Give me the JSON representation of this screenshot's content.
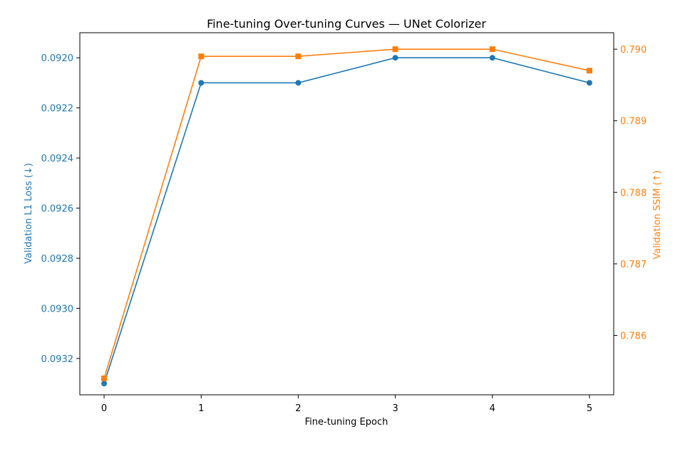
{
  "chart_data": {
    "type": "line",
    "title": "Fine-tuning Over-tuning Curves — UNet Colorizer",
    "xlabel": "Fine-tuning Epoch",
    "x": [
      0,
      1,
      2,
      3,
      4,
      5
    ],
    "xticks": [
      "0",
      "1",
      "2",
      "3",
      "4",
      "5"
    ],
    "xlim": [
      -0.25,
      5.25
    ],
    "grid": false,
    "series": [
      {
        "axis": "left",
        "color": "#1f77b4",
        "marker": "circle",
        "values": [
          0.0933,
          0.0921,
          0.0921,
          0.092,
          0.092,
          0.0921
        ]
      },
      {
        "axis": "right",
        "color": "#ff7f0e",
        "marker": "square",
        "values": [
          0.7854,
          0.7899,
          0.7899,
          0.79,
          0.79,
          0.7897
        ]
      }
    ],
    "y_left": {
      "label": "Validation L1 Loss (↓)",
      "inverted": true,
      "lim": [
        0.0919,
        0.093345
      ],
      "ticks": [
        "0.0920",
        "0.0922",
        "0.0924",
        "0.0926",
        "0.0928",
        "0.0930",
        "0.0932"
      ],
      "tick_values": [
        0.092,
        0.0922,
        0.0924,
        0.0926,
        0.0928,
        0.093,
        0.0932
      ],
      "color": "#1f77b4"
    },
    "y_right": {
      "label": "Validation SSIM (↑)",
      "lim": [
        0.78517,
        0.79023
      ],
      "ticks": [
        "0.786",
        "0.787",
        "0.788",
        "0.789",
        "0.790"
      ],
      "tick_values": [
        0.786,
        0.787,
        0.788,
        0.789,
        0.79
      ],
      "color": "#ff7f0e"
    }
  }
}
